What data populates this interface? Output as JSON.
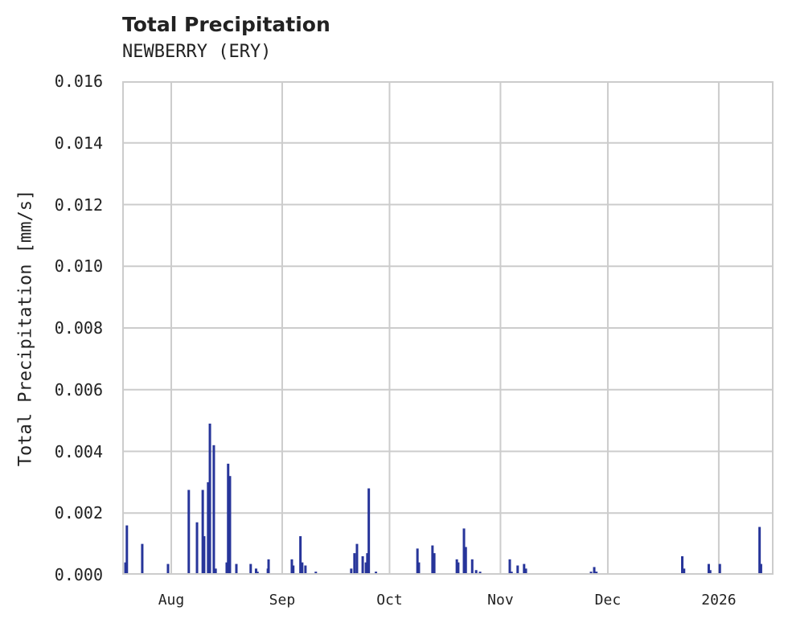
{
  "header": {
    "title": "Total Precipitation",
    "subtitle": "NEWBERRY (ERY)"
  },
  "axes": {
    "ylabel": "Total Precipitation [mm/s]",
    "yticks": [
      "0.000",
      "0.002",
      "0.004",
      "0.006",
      "0.008",
      "0.010",
      "0.012",
      "0.014",
      "0.016"
    ],
    "xticks": [
      "Aug",
      "Sep",
      "Oct",
      "Nov",
      "Dec",
      "2026"
    ]
  },
  "colors": {
    "bar": "#27359a",
    "grid": "#cccccc",
    "text": "#222222"
  },
  "chart_data": {
    "type": "bar",
    "title": "Total Precipitation",
    "subtitle": "NEWBERRY (ERY)",
    "xlabel": "",
    "ylabel": "Total Precipitation [mm/s]",
    "ylim": [
      0,
      0.016
    ],
    "xlim_days_from_aug1": [
      -13.7,
      168.3
    ],
    "grid": true,
    "legend": null,
    "x_tick_days_from_aug1": [
      0,
      31,
      61,
      92,
      122,
      153
    ],
    "x_tick_labels": [
      "Aug",
      "Sep",
      "Oct",
      "Nov",
      "Dec",
      "2026"
    ],
    "series": [
      {
        "name": "Total Precipitation",
        "x_days_from_aug1": [
          -12.8,
          -12.4,
          -8.1,
          -0.9,
          4.9,
          7.2,
          8.8,
          9.2,
          10.3,
          10.8,
          11.9,
          12.4,
          15.5,
          15.9,
          16.4,
          18.2,
          19.3,
          22.2,
          23.7,
          24.1,
          27.0,
          27.2,
          30.3,
          33.7,
          34.1,
          36.1,
          36.6,
          37.5,
          37.7,
          40.4,
          43.1,
          50.3,
          51.2,
          51.9,
          53.5,
          54.4,
          54.8,
          55.2,
          57.2,
          68.8,
          69.2,
          73.0,
          73.5,
          79.8,
          80.2,
          81.8,
          82.3,
          84.1,
          85.2,
          86.3,
          94.6,
          95.1,
          96.8,
          98.6,
          99.1,
          112.6,
          117.3,
          118.2,
          118.8,
          120.0,
          135.6,
          142.8,
          143.3,
          150.2,
          150.6,
          153.3,
          160.4,
          164.4,
          164.8,
          166.2,
          169.1
        ],
        "values": [
          0.0004,
          0.0016,
          0.001,
          0.00035,
          0.00275,
          0.0017,
          0.00275,
          0.00125,
          0.003,
          0.0049,
          0.0042,
          0.0002,
          0.0004,
          0.0036,
          0.0032,
          0.00035,
          5e-05,
          0.00035,
          0.0002,
          0.0001,
          0.0002,
          0.0005,
          5e-05,
          0.0005,
          0.0003,
          0.00125,
          0.0004,
          0.0003,
          5e-05,
          0.0001,
          5e-05,
          0.0002,
          0.0007,
          0.001,
          0.0006,
          0.0004,
          0.0007,
          0.0028,
          0.0001,
          0.00085,
          0.0004,
          0.00095,
          0.0007,
          0.0005,
          0.0004,
          0.0015,
          0.0009,
          0.0005,
          0.00015,
          0.0001,
          0.0005,
          0.0001,
          0.0003,
          0.00035,
          0.0002,
          5e-05,
          0.0001,
          0.00025,
          0.0001,
          5e-05,
          5e-05,
          0.0006,
          0.0002,
          0.00035,
          0.00015,
          0.00035,
          5e-05,
          0.00155,
          0.00035,
          5e-05,
          5e-05
        ]
      }
    ]
  }
}
